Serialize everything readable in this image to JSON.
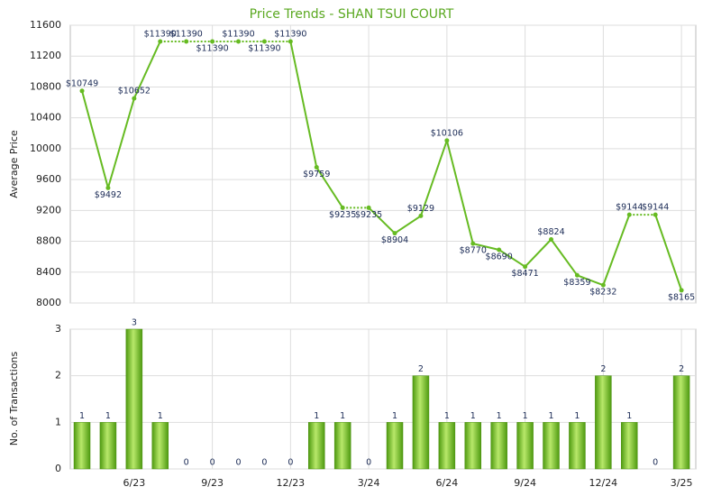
{
  "chart_data": [
    {
      "type": "line",
      "title": "Price Trends - SHAN TSUI COURT",
      "y_label": "Average Price",
      "color": "#66bb22",
      "values": [
        10749,
        9492,
        10652,
        11390,
        11390,
        11390,
        11390,
        11390,
        11390,
        9759,
        9235,
        9235,
        8904,
        9129,
        10106,
        8770,
        8690,
        8471,
        8824,
        8359,
        8232,
        9144,
        9144,
        8165
      ],
      "value_labels": [
        "$10749",
        "$9492",
        "$10652",
        "$11390",
        "$11390",
        "$11390",
        "$11390",
        "$11390",
        "$11390",
        "$9759",
        "$9235",
        "$9235",
        "$8904",
        "$9129",
        "$10106",
        "$8770",
        "$8690",
        "$8471",
        "$8824",
        "$8359",
        "$8232",
        "$9144",
        "$9144",
        "$8165"
      ],
      "ylim": [
        8000,
        11600
      ],
      "yticks": [
        8000,
        8400,
        8800,
        9200,
        9600,
        10000,
        10400,
        10800,
        11200,
        11600
      ],
      "grid": true
    },
    {
      "type": "bar",
      "y_label": "No. of Transactions",
      "color": "#66bb22",
      "categories": [
        null,
        null,
        "6/23",
        null,
        null,
        "9/23",
        null,
        null,
        "12/23",
        null,
        null,
        "3/24",
        null,
        null,
        "6/24",
        null,
        null,
        "9/24",
        null,
        null,
        "12/24",
        null,
        null,
        "3/25"
      ],
      "values": [
        1,
        1,
        3,
        1,
        0,
        0,
        0,
        0,
        0,
        1,
        1,
        0,
        1,
        2,
        1,
        1,
        1,
        1,
        1,
        1,
        2,
        1,
        0,
        2
      ],
      "ylim": [
        0,
        3
      ],
      "yticks": [
        0,
        1,
        2,
        3
      ],
      "grid": true
    }
  ]
}
